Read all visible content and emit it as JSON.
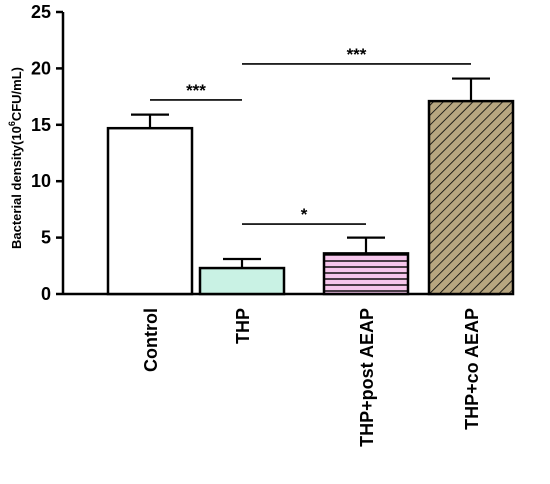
{
  "chart_data": {
    "type": "bar",
    "ylabel": {
      "prefix": "Bacterial density(10",
      "sup": "6",
      "suffix": "CFU/mL)"
    },
    "ylim": [
      0,
      25
    ],
    "yticks": [
      "0",
      "5",
      "10",
      "15",
      "20",
      "25"
    ],
    "categories": [
      "Control",
      "THP",
      "THP+post AEAP",
      "THP+co AEAP"
    ],
    "values": [
      14.7,
      2.3,
      3.6,
      17.1
    ],
    "errors": [
      1.2,
      0.8,
      1.4,
      2.0
    ],
    "bar_styles": [
      {
        "fill": "#ffffff",
        "hatch": "none",
        "hatch_color": "#000000"
      },
      {
        "fill": "#c9f2e4",
        "hatch": "none",
        "hatch_color": "#000000"
      },
      {
        "fill": "#f6c6ec",
        "hatch": "horizontal",
        "hatch_color": "#000000"
      },
      {
        "fill": "#b7a680",
        "hatch": "diagonal",
        "hatch_color": "#000000"
      }
    ],
    "significance": [
      {
        "from": 0,
        "to": 1,
        "label": "***",
        "y": 17.2
      },
      {
        "from": 1,
        "to": 3,
        "label": "***",
        "y": 20.4
      },
      {
        "from": 1,
        "to": 2,
        "label": "*",
        "y": 6.2
      }
    ],
    "grid": false
  }
}
